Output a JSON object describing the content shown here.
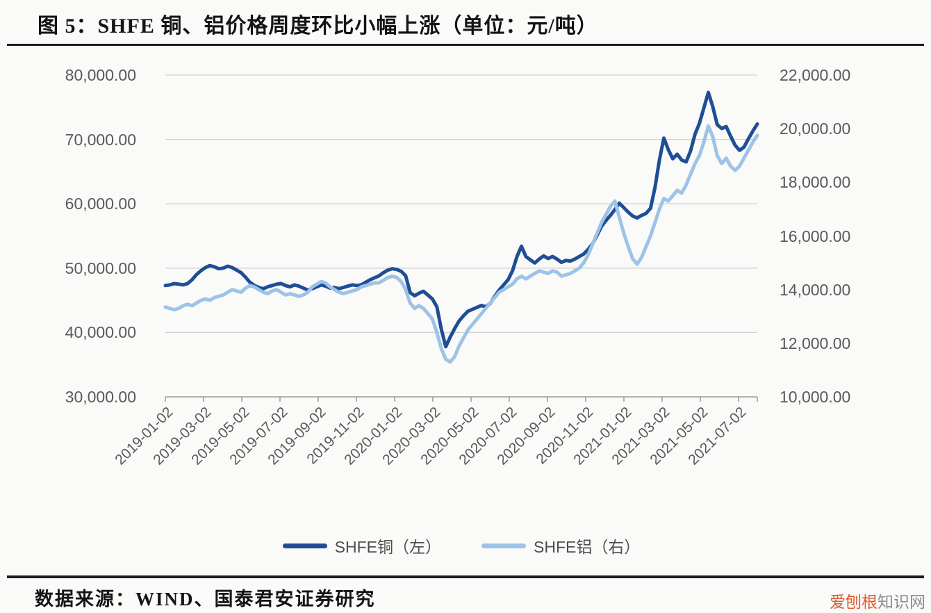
{
  "title": "图 5：SHFE 铜、铝价格周度环比小幅上涨（单位：元/吨）",
  "source": "数据来源：WIND、国泰君安证券研究",
  "watermark": {
    "brand": "爱刨根",
    "suffix": "知识网",
    "brand_color": "#e05a2b",
    "suffix_color": "#8c8c8c"
  },
  "chart_data": {
    "type": "line",
    "title": "图 5：SHFE 铜、铝价格周度环比小幅上涨（单位：元/吨）",
    "unit": "元/吨",
    "x_frequency": "weekly",
    "x_start": "2019-01-02",
    "x_tick_labels": [
      "2019-01-02",
      "2019-03-02",
      "2019-05-02",
      "2019-07-02",
      "2019-09-02",
      "2019-11-02",
      "2020-01-02",
      "2020-03-02",
      "2020-05-02",
      "2020-07-02",
      "2020-09-02",
      "2020-11-02",
      "2021-01-02",
      "2021-03-02",
      "2021-05-02",
      "2021-07-02"
    ],
    "left_axis": {
      "min": 30000,
      "max": 80000,
      "step": 10000,
      "tick_labels": [
        "80,000.00",
        "70,000.00",
        "60,000.00",
        "50,000.00",
        "40,000.00",
        "30,000.00"
      ]
    },
    "right_axis": {
      "min": 10000,
      "max": 22000,
      "step": 2000,
      "tick_labels": [
        "22,000.00",
        "20,000.00",
        "18,000.00",
        "16,000.00",
        "14,000.00",
        "12,000.00",
        "10,000.00"
      ]
    },
    "grid": "horizontal",
    "legend_position": "bottom",
    "series": [
      {
        "name": "SHFE铜（左）",
        "axis": "left",
        "color": "#1F4E96",
        "values": [
          47300,
          47400,
          47600,
          47500,
          47400,
          47600,
          48200,
          49000,
          49600,
          50100,
          50400,
          50200,
          49900,
          50000,
          50300,
          50100,
          49700,
          49300,
          48600,
          47800,
          47300,
          47000,
          46800,
          47100,
          47300,
          47500,
          47600,
          47300,
          47100,
          47400,
          47200,
          46900,
          46600,
          46800,
          47100,
          47400,
          47200,
          46900,
          47000,
          46800,
          47000,
          47200,
          47400,
          47300,
          47400,
          47800,
          48200,
          48500,
          48800,
          49300,
          49700,
          49900,
          49800,
          49500,
          48800,
          46200,
          45700,
          46100,
          46400,
          45800,
          45200,
          44000,
          40500,
          37800,
          39300,
          40600,
          41800,
          42600,
          43300,
          43600,
          43900,
          44200,
          44000,
          44500,
          45600,
          46600,
          47400,
          48200,
          49600,
          51800,
          53400,
          51800,
          51300,
          50800,
          51400,
          51900,
          51500,
          51800,
          51400,
          50900,
          51200,
          51100,
          51400,
          51800,
          52200,
          52900,
          53800,
          55100,
          56500,
          57400,
          58200,
          59100,
          60100,
          59400,
          58700,
          58100,
          57800,
          58200,
          58500,
          59300,
          62500,
          66800,
          70200,
          68400,
          67000,
          67700,
          66800,
          66500,
          68200,
          70800,
          72500,
          74900,
          77300,
          75100,
          72300,
          71700,
          72000,
          70500,
          69100,
          68300,
          68800,
          70100,
          71300,
          72400
        ]
      },
      {
        "name": "SHFE铝（右）",
        "axis": "right",
        "color": "#9DC3E6",
        "values": [
          13350,
          13300,
          13250,
          13300,
          13400,
          13450,
          13400,
          13500,
          13600,
          13650,
          13600,
          13700,
          13750,
          13800,
          13900,
          14000,
          13950,
          13900,
          14050,
          14150,
          14100,
          14000,
          13900,
          13850,
          13950,
          14000,
          13900,
          13800,
          13850,
          13800,
          13750,
          13800,
          13900,
          14100,
          14200,
          14300,
          14250,
          14100,
          14000,
          13900,
          13850,
          13900,
          13950,
          14000,
          14100,
          14150,
          14200,
          14250,
          14250,
          14350,
          14450,
          14500,
          14450,
          14300,
          14000,
          13500,
          13300,
          13400,
          13300,
          13100,
          12900,
          12400,
          11800,
          11400,
          11300,
          11500,
          11900,
          12200,
          12500,
          12700,
          12900,
          13100,
          13300,
          13500,
          13700,
          13900,
          14000,
          14100,
          14200,
          14400,
          14500,
          14400,
          14500,
          14600,
          14700,
          14650,
          14600,
          14700,
          14650,
          14500,
          14550,
          14600,
          14700,
          14800,
          15000,
          15300,
          15700,
          16100,
          16500,
          16800,
          17100,
          17300,
          16700,
          16100,
          15600,
          15150,
          14950,
          15200,
          15600,
          16000,
          16500,
          17000,
          17400,
          17300,
          17500,
          17700,
          17600,
          17900,
          18300,
          18700,
          19000,
          19500,
          20100,
          19700,
          19000,
          18700,
          18900,
          18600,
          18450,
          18600,
          18900,
          19200,
          19500,
          19750
        ]
      }
    ],
    "style": {
      "grid_color": "#d2d2d2",
      "axis_color": "#9b9b9b",
      "tick_text_color": "#595959",
      "line_width": 5
    }
  }
}
